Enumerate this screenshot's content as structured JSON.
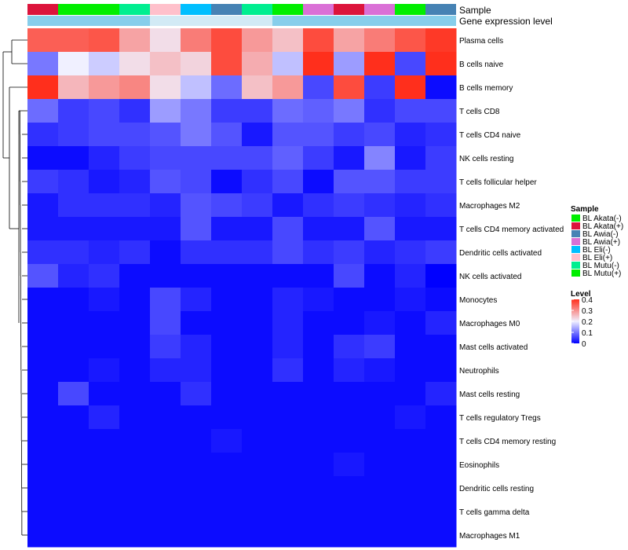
{
  "chart_data": {
    "type": "heatmap",
    "title": "",
    "annotation_labels": [
      "Sample",
      "Gene expression level"
    ],
    "sample_annotation": [
      "BL Akata(+)",
      "BL Akata(-)",
      "BL Akata(-)",
      "BL Mutu(-)",
      "BL Eli(+)",
      "BL Eli(-)",
      "BL Awia(-)",
      "BL Mutu(-)",
      "BL Mutu(+)",
      "BL Awia(+)",
      "BL Akata(+)",
      "BL Awia(+)",
      "BL Mutu(+)",
      "BL Awia(-)"
    ],
    "gene_expression_annotation": [
      "high",
      "high",
      "high",
      "high",
      "low",
      "low",
      "low",
      "low",
      "high",
      "high",
      "high",
      "high",
      "high",
      "high"
    ],
    "rows": [
      "Plasma cells",
      "B cells naive",
      "B cells memory",
      "T cells CD8",
      "T cells CD4 naive",
      "NK cells resting",
      "T cells follicular helper",
      "Macrophages M2",
      "T cells CD4 memory activated",
      "Dendritic cells activated",
      "NK cells activated",
      "Monocytes",
      "Macrophages M0",
      "Mast cells activated",
      "Neutrophils",
      "Mast cells resting",
      "T cells regulatory  Tregs",
      "T cells CD4 memory resting",
      "Eosinophils",
      "Dendritic cells resting",
      "T cells gamma delta",
      "Macrophages M1"
    ],
    "values": [
      [
        0.35,
        0.35,
        0.36,
        0.28,
        0.22,
        0.32,
        0.37,
        0.29,
        0.25,
        0.37,
        0.28,
        0.32,
        0.36,
        0.39
      ],
      [
        0.1,
        0.2,
        0.17,
        0.22,
        0.25,
        0.23,
        0.37,
        0.27,
        0.16,
        0.41,
        0.13,
        0.42,
        0.06,
        0.4
      ],
      [
        0.4,
        0.26,
        0.29,
        0.31,
        0.22,
        0.16,
        0.09,
        0.25,
        0.29,
        0.06,
        0.37,
        0.05,
        0.42,
        0.01
      ],
      [
        0.09,
        0.05,
        0.06,
        0.04,
        0.13,
        0.1,
        0.05,
        0.05,
        0.09,
        0.08,
        0.1,
        0.04,
        0.06,
        0.06
      ],
      [
        0.04,
        0.05,
        0.06,
        0.06,
        0.07,
        0.1,
        0.07,
        0.02,
        0.07,
        0.07,
        0.05,
        0.06,
        0.03,
        0.04
      ],
      [
        0.01,
        0.01,
        0.03,
        0.05,
        0.06,
        0.06,
        0.06,
        0.06,
        0.08,
        0.05,
        0.02,
        0.11,
        0.02,
        0.05
      ],
      [
        0.05,
        0.04,
        0.02,
        0.03,
        0.07,
        0.06,
        0.01,
        0.04,
        0.06,
        0.01,
        0.07,
        0.07,
        0.05,
        0.05
      ],
      [
        0.02,
        0.04,
        0.04,
        0.04,
        0.03,
        0.07,
        0.06,
        0.05,
        0.02,
        0.04,
        0.05,
        0.04,
        0.03,
        0.04
      ],
      [
        0.02,
        0.02,
        0.02,
        0.02,
        0.02,
        0.07,
        0.02,
        0.02,
        0.06,
        0.02,
        0.02,
        0.07,
        0.02,
        0.02
      ],
      [
        0.04,
        0.04,
        0.03,
        0.04,
        0.01,
        0.04,
        0.04,
        0.04,
        0.06,
        0.04,
        0.05,
        0.03,
        0.04,
        0.05
      ],
      [
        0.07,
        0.03,
        0.04,
        0.01,
        0.01,
        0.01,
        0.01,
        0.01,
        0.01,
        0.01,
        0.06,
        0.01,
        0.03,
        0.0
      ],
      [
        0.01,
        0.01,
        0.02,
        0.01,
        0.06,
        0.03,
        0.01,
        0.01,
        0.03,
        0.02,
        0.01,
        0.01,
        0.02,
        0.01
      ],
      [
        0.01,
        0.01,
        0.01,
        0.01,
        0.06,
        0.01,
        0.01,
        0.01,
        0.03,
        0.01,
        0.01,
        0.02,
        0.01,
        0.03
      ],
      [
        0.01,
        0.01,
        0.01,
        0.01,
        0.05,
        0.03,
        0.01,
        0.01,
        0.03,
        0.01,
        0.04,
        0.05,
        0.01,
        0.01
      ],
      [
        0.01,
        0.01,
        0.02,
        0.01,
        0.03,
        0.03,
        0.01,
        0.01,
        0.04,
        0.01,
        0.03,
        0.02,
        0.01,
        0.01
      ],
      [
        0.01,
        0.06,
        0.01,
        0.01,
        0.01,
        0.04,
        0.01,
        0.01,
        0.01,
        0.01,
        0.01,
        0.01,
        0.01,
        0.03
      ],
      [
        0.01,
        0.01,
        0.03,
        0.01,
        0.01,
        0.01,
        0.01,
        0.01,
        0.01,
        0.01,
        0.01,
        0.01,
        0.02,
        0.01
      ],
      [
        0.01,
        0.01,
        0.01,
        0.01,
        0.01,
        0.01,
        0.02,
        0.01,
        0.01,
        0.01,
        0.01,
        0.01,
        0.01,
        0.01
      ],
      [
        0.01,
        0.01,
        0.01,
        0.01,
        0.01,
        0.01,
        0.01,
        0.01,
        0.01,
        0.01,
        0.02,
        0.01,
        0.01,
        0.01
      ],
      [
        0.01,
        0.01,
        0.01,
        0.01,
        0.01,
        0.01,
        0.01,
        0.01,
        0.01,
        0.01,
        0.01,
        0.01,
        0.01,
        0.01
      ],
      [
        0.01,
        0.01,
        0.01,
        0.01,
        0.01,
        0.01,
        0.01,
        0.01,
        0.01,
        0.01,
        0.01,
        0.01,
        0.01,
        0.01
      ],
      [
        0.01,
        0.01,
        0.01,
        0.01,
        0.01,
        0.01,
        0.01,
        0.01,
        0.01,
        0.01,
        0.01,
        0.01,
        0.01,
        0.01
      ]
    ],
    "color_range": [
      0,
      0.4
    ],
    "colors": {
      "low": "#0000ff",
      "mid": "#f0f0ff",
      "high": "#ff2f1c"
    },
    "gene_expression_colors": {
      "high": "#87ceeb",
      "low": "#d2eaf5"
    },
    "legend": {
      "sample_title": "Sample",
      "samples": [
        {
          "label": "BL Akata(-)",
          "color": "#00ee00"
        },
        {
          "label": "BL Akata(+)",
          "color": "#dc143c"
        },
        {
          "label": "BL Awia(-)",
          "color": "#4682b4"
        },
        {
          "label": "BL Awia(+)",
          "color": "#da70d6"
        },
        {
          "label": "BL Eli(-)",
          "color": "#00bfff"
        },
        {
          "label": "BL Eli(+)",
          "color": "#ffc0cb"
        },
        {
          "label": "BL Mutu(-)",
          "color": "#00ee90"
        },
        {
          "label": "BL Mutu(+)",
          "color": "#00ee00"
        }
      ],
      "level_title": "Level",
      "level_ticks": [
        "0.4",
        "0.3",
        "0.2",
        "0.1",
        "0"
      ],
      "level_tick_values": [
        0.4,
        0.3,
        0.2,
        0.1,
        0
      ]
    }
  }
}
